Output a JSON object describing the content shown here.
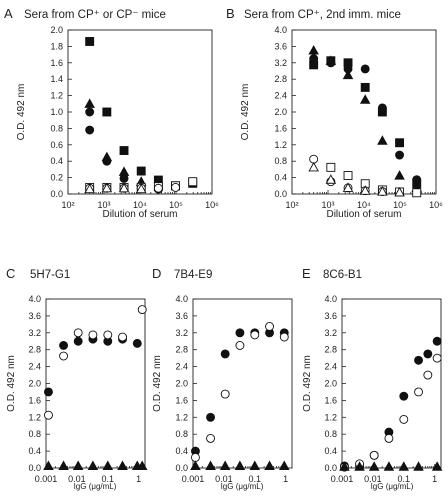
{
  "chart_data": [
    {
      "panel": "A",
      "type": "scatter",
      "title": "Sera from CP⁺ or CP⁻ mice",
      "xlabel": "Dilution of serum",
      "ylabel": "O.D. 492 nm",
      "xscale": "log",
      "xlim": [
        100,
        1000000
      ],
      "ylim": [
        0,
        2.0
      ],
      "xticks": [
        "10²",
        "10³",
        "10⁴",
        "10⁵",
        "10⁶"
      ],
      "yticks": [
        "0.0",
        "0.2",
        "0.4",
        "0.6",
        "0.8",
        "1.0",
        "1.2",
        "1.4",
        "1.6",
        "1.8",
        "2.0"
      ],
      "series": [
        {
          "marker": "square-filled",
          "points": [
            [
              400,
              1.86
            ],
            [
              1200,
              1.0
            ],
            [
              3600,
              0.53
            ],
            [
              10800,
              0.28
            ],
            [
              32400,
              0.17
            ],
            [
              97200,
              0.1
            ],
            [
              291600,
              0.13
            ]
          ]
        },
        {
          "marker": "circle-filled",
          "points": [
            [
              400,
              1.0
            ],
            [
              400,
              0.78
            ],
            [
              1200,
              0.4
            ],
            [
              3600,
              0.19
            ],
            [
              10800,
              0.09
            ],
            [
              32400,
              0.06
            ]
          ]
        },
        {
          "marker": "triangle-filled",
          "points": [
            [
              400,
              1.1
            ],
            [
              1200,
              0.45
            ],
            [
              3600,
              0.27
            ],
            [
              10800,
              0.15
            ]
          ]
        },
        {
          "marker": "square-open",
          "points": [
            [
              400,
              0.08
            ],
            [
              1200,
              0.08
            ],
            [
              3600,
              0.08
            ],
            [
              10800,
              0.08
            ],
            [
              32400,
              0.09
            ],
            [
              97200,
              0.1
            ],
            [
              291600,
              0.15
            ]
          ]
        },
        {
          "marker": "circle-open",
          "points": [
            [
              400,
              0.07
            ],
            [
              1200,
              0.07
            ],
            [
              3600,
              0.07
            ],
            [
              10800,
              0.07
            ],
            [
              32400,
              0.07
            ],
            [
              97200,
              0.08
            ]
          ]
        },
        {
          "marker": "triangle-open",
          "points": [
            [
              400,
              0.06
            ],
            [
              1200,
              0.07
            ],
            [
              3600,
              0.07
            ],
            [
              10800,
              0.06
            ]
          ]
        }
      ]
    },
    {
      "panel": "B",
      "type": "scatter",
      "title": "Sera from CP⁺, 2nd imm. mice",
      "xlabel": "Dilution of serum",
      "ylabel": "O.D. 492 nm",
      "xscale": "log",
      "xlim": [
        100,
        1000000
      ],
      "ylim": [
        0,
        4.0
      ],
      "xticks": [
        "10²",
        "10³",
        "10⁴",
        "10⁵",
        "10⁶"
      ],
      "yticks": [
        "0.0",
        "0.4",
        "0.8",
        "1.2",
        "1.6",
        "2.0",
        "2.4",
        "2.8",
        "3.2",
        "3.6",
        "4.0"
      ],
      "series": [
        {
          "marker": "triangle-filled",
          "points": [
            [
              400,
              3.5
            ],
            [
              1200,
              3.25
            ],
            [
              3600,
              2.9
            ],
            [
              10800,
              2.3
            ],
            [
              32400,
              1.3
            ],
            [
              97200,
              0.45
            ],
            [
              291600,
              0.15
            ]
          ]
        },
        {
          "marker": "square-filled",
          "points": [
            [
              400,
              3.15
            ],
            [
              1200,
              3.25
            ],
            [
              3600,
              3.2
            ],
            [
              10800,
              2.6
            ],
            [
              32400,
              2.0
            ],
            [
              97200,
              1.25
            ],
            [
              291600,
              0.25
            ]
          ]
        },
        {
          "marker": "circle-filled",
          "points": [
            [
              400,
              3.3
            ],
            [
              1200,
              3.2
            ],
            [
              3600,
              3.05
            ],
            [
              10800,
              3.05
            ],
            [
              32400,
              2.1
            ],
            [
              97200,
              0.95
            ],
            [
              291600,
              0.35
            ]
          ]
        },
        {
          "marker": "square-open",
          "points": [
            [
              1200,
              0.65
            ],
            [
              3600,
              0.45
            ],
            [
              10800,
              0.25
            ],
            [
              32400,
              0.1
            ],
            [
              97200,
              0.05
            ],
            [
              291600,
              0.03
            ]
          ]
        },
        {
          "marker": "circle-open",
          "points": [
            [
              400,
              0.85
            ],
            [
              1200,
              0.3
            ],
            [
              3600,
              0.15
            ],
            [
              10800,
              0.08
            ],
            [
              32400,
              0.06
            ]
          ]
        },
        {
          "marker": "triangle-open",
          "points": [
            [
              400,
              0.65
            ],
            [
              1200,
              0.35
            ],
            [
              3600,
              0.15
            ],
            [
              10800,
              0.08
            ],
            [
              32400,
              0.06
            ],
            [
              97200,
              0.04
            ]
          ]
        }
      ]
    },
    {
      "panel": "C",
      "type": "scatter",
      "title": "5H7-G1",
      "xlabel": "IgG (μg/mL)",
      "ylabel": "O.D. 492 nm",
      "xscale": "log",
      "xlim": [
        0.001,
        1.6
      ],
      "ylim": [
        0,
        4.0
      ],
      "xticks": [
        "0.001",
        "0.01",
        "0.1",
        "1"
      ],
      "yticks": [
        "0.0",
        "0.4",
        "0.8",
        "1.2",
        "1.6",
        "2.0",
        "2.4",
        "2.8",
        "3.2",
        "3.6",
        "4.0"
      ],
      "series": [
        {
          "marker": "circle-filled",
          "points": [
            [
              0.0012,
              1.8
            ],
            [
              0.0037,
              2.9
            ],
            [
              0.011,
              3.0
            ],
            [
              0.033,
              3.05
            ],
            [
              0.1,
              3.0
            ],
            [
              0.3,
              3.05
            ],
            [
              0.9,
              2.95
            ]
          ]
        },
        {
          "marker": "circle-open",
          "points": [
            [
              0.0012,
              1.25
            ],
            [
              0.0037,
              2.65
            ],
            [
              0.011,
              3.2
            ],
            [
              0.033,
              3.15
            ],
            [
              0.1,
              3.15
            ],
            [
              0.3,
              3.1
            ],
            [
              1.3,
              3.75
            ]
          ]
        },
        {
          "marker": "triangle-filled",
          "points": [
            [
              0.0012,
              0.05
            ],
            [
              0.0037,
              0.05
            ],
            [
              0.011,
              0.05
            ],
            [
              0.033,
              0.05
            ],
            [
              0.1,
              0.05
            ],
            [
              0.3,
              0.05
            ],
            [
              0.9,
              0.05
            ],
            [
              1.3,
              0.05
            ]
          ]
        }
      ]
    },
    {
      "panel": "D",
      "type": "scatter",
      "title": "7B4-E9",
      "xlabel": "IgG (μg/mL)",
      "ylabel": "O.D. 492 nm",
      "xscale": "log",
      "xlim": [
        0.001,
        1.6
      ],
      "ylim": [
        0,
        4.0
      ],
      "xticks": [
        "0.001",
        "0.01",
        "0.1",
        "1"
      ],
      "yticks": [
        "0.0",
        "0.4",
        "0.8",
        "1.2",
        "1.6",
        "2.0",
        "2.4",
        "2.8",
        "3.2",
        "3.6",
        "4.0"
      ],
      "series": [
        {
          "marker": "circle-filled",
          "points": [
            [
              0.0012,
              0.4
            ],
            [
              0.0037,
              1.2
            ],
            [
              0.011,
              2.7
            ],
            [
              0.033,
              3.2
            ],
            [
              0.1,
              3.2
            ],
            [
              0.3,
              3.2
            ],
            [
              0.9,
              3.2
            ]
          ]
        },
        {
          "marker": "circle-open",
          "points": [
            [
              0.0012,
              0.25
            ],
            [
              0.0037,
              0.7
            ],
            [
              0.011,
              1.75
            ],
            [
              0.033,
              2.9
            ],
            [
              0.1,
              3.15
            ],
            [
              0.3,
              3.35
            ],
            [
              0.9,
              3.1
            ]
          ]
        },
        {
          "marker": "triangle-filled",
          "points": [
            [
              0.0012,
              0.05
            ],
            [
              0.0037,
              0.05
            ],
            [
              0.011,
              0.05
            ],
            [
              0.033,
              0.05
            ],
            [
              0.1,
              0.05
            ],
            [
              0.3,
              0.05
            ],
            [
              0.9,
              0.05
            ]
          ]
        }
      ]
    },
    {
      "panel": "E",
      "type": "scatter",
      "title": "8C6-B1",
      "xlabel": "IgG (μg/mL)",
      "ylabel": "O.D. 492 nm",
      "xscale": "log",
      "xlim": [
        0.001,
        1.6
      ],
      "ylim": [
        0,
        4.0
      ],
      "xticks": [
        "0.001",
        "0.01",
        "0.1",
        "1"
      ],
      "yticks": [
        "0.0",
        "0.4",
        "0.8",
        "1.2",
        "1.6",
        "2.0",
        "2.4",
        "2.8",
        "3.2",
        "3.6",
        "4.0"
      ],
      "series": [
        {
          "marker": "circle-filled",
          "points": [
            [
              0.0012,
              0.05
            ],
            [
              0.0037,
              0.05
            ],
            [
              0.011,
              0.3
            ],
            [
              0.033,
              0.85
            ],
            [
              0.1,
              1.7
            ],
            [
              0.3,
              2.55
            ],
            [
              0.6,
              2.7
            ],
            [
              1.2,
              3.0
            ]
          ]
        },
        {
          "marker": "circle-open",
          "points": [
            [
              0.0012,
              0.02
            ],
            [
              0.0037,
              0.1
            ],
            [
              0.011,
              0.3
            ],
            [
              0.033,
              0.7
            ],
            [
              0.1,
              1.15
            ],
            [
              0.3,
              1.8
            ],
            [
              0.6,
              2.2
            ],
            [
              1.2,
              2.6
            ]
          ]
        },
        {
          "marker": "triangle-filled",
          "points": [
            [
              0.0012,
              0.03
            ],
            [
              0.0037,
              0.03
            ],
            [
              0.011,
              0.03
            ],
            [
              0.033,
              0.03
            ],
            [
              0.1,
              0.03
            ],
            [
              0.3,
              0.03
            ],
            [
              1.2,
              0.03
            ]
          ]
        }
      ]
    }
  ]
}
